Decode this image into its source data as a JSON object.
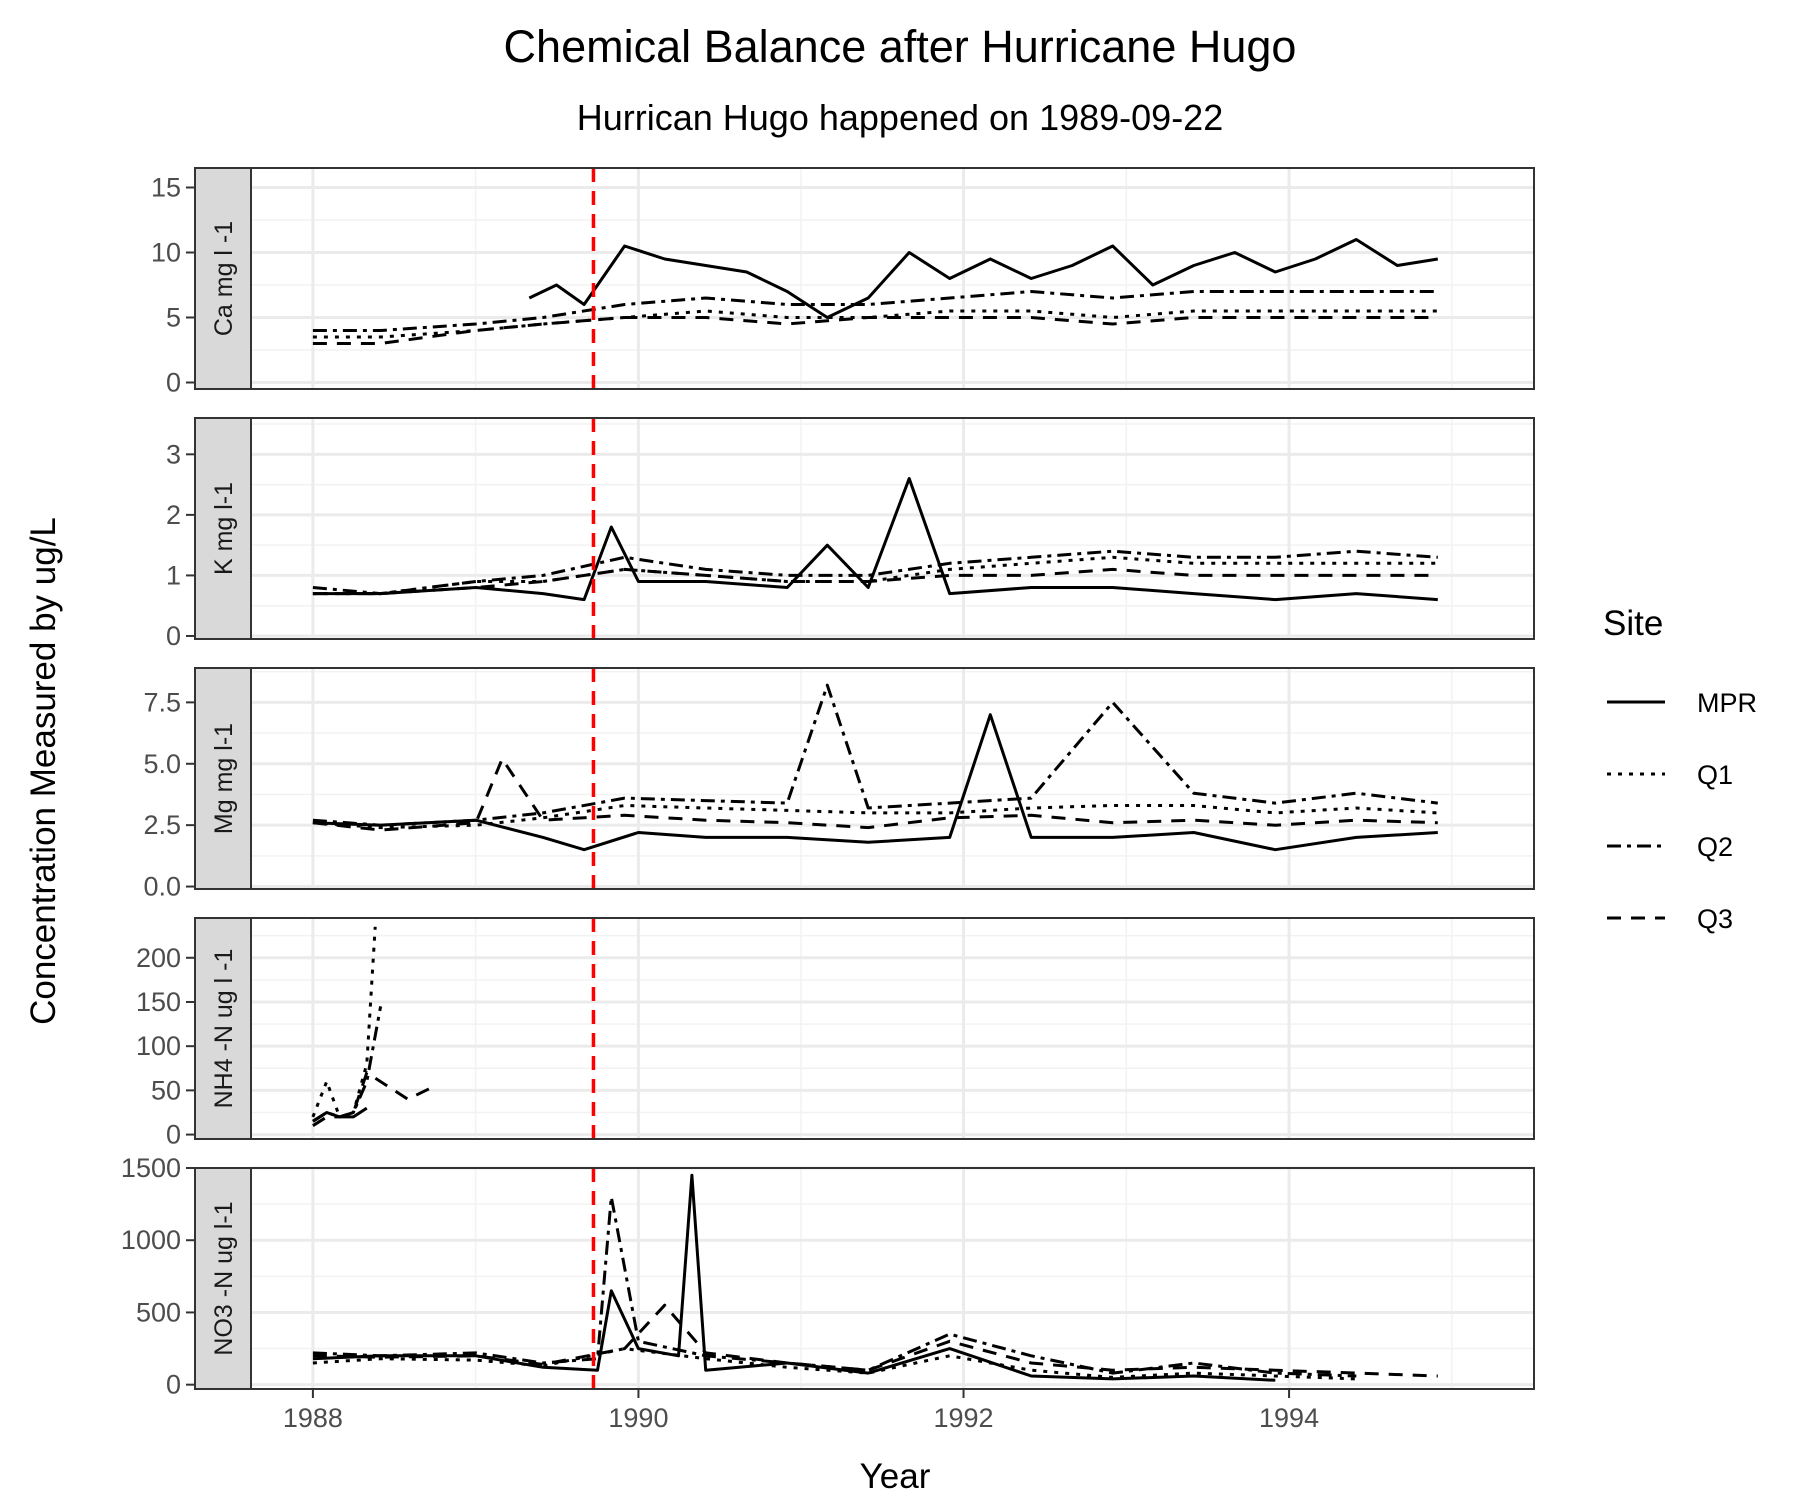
{
  "chart_data": {
    "type": "line",
    "title": "Chemical Balance after Hurricane Hugo",
    "subtitle": "Hurrican Hugo happened on 1989-09-22",
    "xlabel": "Year",
    "ylabel": "Concentration Measured by ug/L",
    "x_range": [
      "1987-08-15",
      "1995-07-05"
    ],
    "x_ticks": [
      {
        "value": "1988-01-01",
        "label": "1988"
      },
      {
        "value": "1990-01-01",
        "label": "1990"
      },
      {
        "value": "1992-01-01",
        "label": "1992"
      },
      {
        "value": "1994-01-01",
        "label": "1994"
      }
    ],
    "event_line": {
      "date": "1989-09-22",
      "color": "#ff0000",
      "style": "dashed"
    },
    "grid": true,
    "legend": {
      "title": "Site",
      "position": "right",
      "items": [
        {
          "name": "MPR",
          "linetype": "solid"
        },
        {
          "name": "Q1",
          "linetype": "dotted"
        },
        {
          "name": "Q2",
          "linetype": "dotdash"
        },
        {
          "name": "Q3",
          "linetype": "dashed"
        }
      ]
    },
    "panels": [
      {
        "strip": "Ca mg l -1",
        "ylim": [
          -0.5,
          16.5
        ],
        "y_ticks": [
          0,
          5,
          10,
          15
        ],
        "y_tick_labels": [
          "0",
          "5",
          "10",
          "15"
        ],
        "series": [
          {
            "name": "MPR",
            "dates": [
              "1989-05-01",
              "1989-07-01",
              "1989-09-01",
              "1989-12-01",
              "1990-03-01",
              "1990-06-01",
              "1990-09-01",
              "1990-12-01",
              "1991-03-01",
              "1991-06-01",
              "1991-09-01",
              "1991-12-01",
              "1992-03-01",
              "1992-06-01",
              "1992-09-01",
              "1992-12-01",
              "1993-03-01",
              "1993-06-01",
              "1993-09-01",
              "1993-12-01",
              "1994-03-01",
              "1994-06-01",
              "1994-09-01",
              "1994-12-01"
            ],
            "values": [
              6.5,
              7.5,
              6.0,
              10.5,
              9.5,
              9.0,
              8.5,
              7.0,
              5.0,
              6.5,
              10.0,
              8.0,
              9.5,
              8.0,
              9.0,
              10.5,
              7.5,
              9.0,
              10.0,
              8.5,
              9.5,
              11.0,
              9.0,
              9.5
            ]
          },
          {
            "name": "Q1",
            "dates": [
              "1988-01-01",
              "1988-06-01",
              "1989-01-01",
              "1989-06-01",
              "1989-12-01",
              "1990-06-01",
              "1990-12-01",
              "1991-06-01",
              "1991-12-01",
              "1992-06-01",
              "1992-12-01",
              "1993-06-01",
              "1993-12-01",
              "1994-06-01",
              "1994-12-01"
            ],
            "values": [
              3.5,
              3.5,
              4.0,
              4.5,
              5.0,
              5.5,
              5.0,
              5.0,
              5.5,
              5.5,
              5.0,
              5.5,
              5.5,
              5.5,
              5.5
            ]
          },
          {
            "name": "Q2",
            "dates": [
              "1988-01-01",
              "1988-06-01",
              "1989-01-01",
              "1989-06-01",
              "1989-12-01",
              "1990-06-01",
              "1990-12-01",
              "1991-06-01",
              "1991-12-01",
              "1992-06-01",
              "1992-12-01",
              "1993-06-01",
              "1993-12-01",
              "1994-06-01",
              "1994-12-01"
            ],
            "values": [
              4.0,
              4.0,
              4.5,
              5.0,
              6.0,
              6.5,
              6.0,
              6.0,
              6.5,
              7.0,
              6.5,
              7.0,
              7.0,
              7.0,
              7.0
            ]
          },
          {
            "name": "Q3",
            "dates": [
              "1988-01-01",
              "1988-06-01",
              "1989-01-01",
              "1989-06-01",
              "1989-12-01",
              "1990-06-01",
              "1990-12-01",
              "1991-06-01",
              "1991-12-01",
              "1992-06-01",
              "1992-12-01",
              "1993-06-01",
              "1993-12-01",
              "1994-06-01",
              "1994-12-01"
            ],
            "values": [
              3.0,
              3.0,
              4.0,
              4.5,
              5.0,
              5.0,
              4.5,
              5.0,
              5.0,
              5.0,
              4.5,
              5.0,
              5.0,
              5.0,
              5.0
            ]
          }
        ]
      },
      {
        "strip": "K mg l-1",
        "ylim": [
          -0.05,
          3.6
        ],
        "y_ticks": [
          0,
          1,
          2,
          3
        ],
        "y_tick_labels": [
          "0",
          "1",
          "2",
          "3"
        ],
        "series": [
          {
            "name": "MPR",
            "dates": [
              "1988-01-01",
              "1988-06-01",
              "1989-01-01",
              "1989-06-01",
              "1989-09-01",
              "1989-11-01",
              "1990-01-01",
              "1990-06-01",
              "1990-12-01",
              "1991-03-01",
              "1991-06-01",
              "1991-09-01",
              "1991-12-01",
              "1992-06-01",
              "1992-12-01",
              "1993-06-01",
              "1993-12-01",
              "1994-06-01",
              "1994-12-01"
            ],
            "values": [
              0.7,
              0.7,
              0.8,
              0.7,
              0.6,
              1.8,
              0.9,
              0.9,
              0.8,
              1.5,
              0.8,
              2.6,
              0.7,
              0.8,
              0.8,
              0.7,
              0.6,
              0.7,
              0.6
            ]
          },
          {
            "name": "Q1",
            "dates": [
              "1988-01-01",
              "1988-06-01",
              "1989-01-01",
              "1989-06-01",
              "1989-12-01",
              "1990-06-01",
              "1990-12-01",
              "1991-06-01",
              "1991-12-01",
              "1992-06-01",
              "1992-12-01",
              "1993-06-01",
              "1993-12-01",
              "1994-06-01",
              "1994-12-01"
            ],
            "values": [
              0.7,
              0.7,
              0.9,
              0.9,
              1.1,
              1.0,
              0.9,
              0.9,
              1.1,
              1.2,
              1.3,
              1.2,
              1.2,
              1.2,
              1.2
            ]
          },
          {
            "name": "Q2",
            "dates": [
              "1988-01-01",
              "1988-06-01",
              "1989-01-01",
              "1989-06-01",
              "1989-12-01",
              "1990-06-01",
              "1990-12-01",
              "1991-06-01",
              "1991-12-01",
              "1992-06-01",
              "1992-12-01",
              "1993-06-01",
              "1993-12-01",
              "1994-06-01",
              "1994-12-01"
            ],
            "values": [
              0.8,
              0.7,
              0.9,
              1.0,
              1.3,
              1.1,
              1.0,
              1.0,
              1.2,
              1.3,
              1.4,
              1.3,
              1.3,
              1.4,
              1.3
            ]
          },
          {
            "name": "Q3",
            "dates": [
              "1988-01-01",
              "1988-06-01",
              "1989-01-01",
              "1989-06-01",
              "1989-12-01",
              "1990-06-01",
              "1990-12-01",
              "1991-06-01",
              "1991-12-01",
              "1992-06-01",
              "1992-12-01",
              "1993-06-01",
              "1993-12-01",
              "1994-06-01",
              "1994-12-01"
            ],
            "values": [
              0.7,
              0.7,
              0.8,
              0.9,
              1.1,
              1.0,
              0.9,
              0.9,
              1.0,
              1.0,
              1.1,
              1.0,
              1.0,
              1.0,
              1.0
            ]
          }
        ]
      },
      {
        "strip": "Mg mg l-1",
        "ylim": [
          -0.1,
          8.9
        ],
        "y_ticks": [
          0,
          2.5,
          5,
          7.5
        ],
        "y_tick_labels": [
          "0.0",
          "2.5",
          "5.0",
          "7.5"
        ],
        "series": [
          {
            "name": "MPR",
            "dates": [
              "1988-01-01",
              "1988-06-01",
              "1989-01-01",
              "1989-06-01",
              "1989-09-01",
              "1990-01-01",
              "1990-06-01",
              "1990-12-01",
              "1991-06-01",
              "1991-12-01",
              "1992-03-01",
              "1992-06-01",
              "1992-12-01",
              "1993-06-01",
              "1993-12-01",
              "1994-06-01",
              "1994-12-01"
            ],
            "values": [
              2.6,
              2.5,
              2.7,
              2.0,
              1.5,
              2.2,
              2.0,
              2.0,
              1.8,
              2.0,
              7.0,
              2.0,
              2.0,
              2.2,
              1.5,
              2.0,
              2.2
            ]
          },
          {
            "name": "Q1",
            "dates": [
              "1988-01-01",
              "1988-06-01",
              "1989-01-01",
              "1989-06-01",
              "1989-12-01",
              "1990-06-01",
              "1990-12-01",
              "1991-06-01",
              "1991-12-01",
              "1992-06-01",
              "1992-12-01",
              "1993-06-01",
              "1993-12-01",
              "1994-06-01",
              "1994-12-01"
            ],
            "values": [
              2.6,
              2.4,
              2.5,
              2.8,
              3.3,
              3.2,
              3.1,
              3.0,
              3.0,
              3.2,
              3.3,
              3.3,
              3.0,
              3.2,
              3.0
            ]
          },
          {
            "name": "Q2",
            "dates": [
              "1988-01-01",
              "1988-06-01",
              "1989-01-01",
              "1989-06-01",
              "1989-12-01",
              "1990-06-01",
              "1990-12-01",
              "1991-03-01",
              "1991-06-01",
              "1991-12-01",
              "1992-06-01",
              "1992-12-01",
              "1993-06-01",
              "1993-12-01",
              "1994-06-01",
              "1994-12-01"
            ],
            "values": [
              2.7,
              2.5,
              2.7,
              3.0,
              3.6,
              3.5,
              3.4,
              8.2,
              3.2,
              3.4,
              3.6,
              7.5,
              3.8,
              3.4,
              3.8,
              3.4
            ]
          },
          {
            "name": "Q3",
            "dates": [
              "1988-01-01",
              "1988-06-01",
              "1989-01-01",
              "1989-03-01",
              "1989-06-01",
              "1989-12-01",
              "1990-06-01",
              "1990-12-01",
              "1991-06-01",
              "1991-12-01",
              "1992-06-01",
              "1992-12-01",
              "1993-06-01",
              "1993-12-01",
              "1994-06-01",
              "1994-12-01"
            ],
            "values": [
              2.6,
              2.3,
              2.6,
              5.2,
              2.7,
              2.9,
              2.7,
              2.6,
              2.4,
              2.8,
              2.9,
              2.6,
              2.7,
              2.5,
              2.7,
              2.6
            ]
          }
        ]
      },
      {
        "strip": "NH4 -N ug l -1",
        "ylim": [
          -5,
          245
        ],
        "y_ticks": [
          0,
          50,
          100,
          150,
          200
        ],
        "y_tick_labels": [
          "0",
          "50",
          "100",
          "150",
          "200"
        ],
        "series": [
          {
            "name": "MPR",
            "dates": [
              "1988-01-01",
              "1988-02-01",
              "1988-03-01",
              "1988-04-01",
              "1988-05-01"
            ],
            "values": [
              15,
              25,
              20,
              20,
              30
            ]
          },
          {
            "name": "Q1",
            "dates": [
              "1988-01-01",
              "1988-02-01",
              "1988-03-01",
              "1988-04-01",
              "1988-05-01",
              "1988-05-20"
            ],
            "values": [
              20,
              60,
              20,
              25,
              80,
              235
            ]
          },
          {
            "name": "Q2",
            "dates": [
              "1988-01-01",
              "1988-02-01",
              "1988-03-01",
              "1988-04-01",
              "1988-05-01",
              "1988-06-01"
            ],
            "values": [
              15,
              25,
              20,
              25,
              60,
              145
            ]
          },
          {
            "name": "Q3",
            "dates": [
              "1988-01-01",
              "1988-02-01",
              "1988-03-01",
              "1988-04-01",
              "1988-05-01",
              "1988-08-01",
              "1988-10-01"
            ],
            "values": [
              10,
              20,
              20,
              25,
              70,
              40,
              55
            ]
          }
        ]
      },
      {
        "strip": "NO3 -N ug l-1",
        "ylim": [
          -30,
          1500
        ],
        "y_ticks": [
          0,
          500,
          1000,
          1500
        ],
        "y_tick_labels": [
          "0",
          "500",
          "1000",
          "1500"
        ],
        "series": [
          {
            "name": "MPR",
            "dates": [
              "1988-01-01",
              "1988-06-01",
              "1989-01-01",
              "1989-06-01",
              "1989-10-01",
              "1989-11-01",
              "1990-01-01",
              "1990-04-01",
              "1990-05-01",
              "1990-06-01",
              "1990-12-01",
              "1991-06-01",
              "1991-12-01",
              "1992-06-01",
              "1992-12-01",
              "1993-06-01",
              "1993-12-01"
            ],
            "values": [
              180,
              200,
              200,
              120,
              100,
              650,
              250,
              200,
              1450,
              100,
              150,
              80,
              250,
              60,
              40,
              60,
              30
            ]
          },
          {
            "name": "Q1",
            "dates": [
              "1988-01-01",
              "1988-06-01",
              "1989-01-01",
              "1989-06-01",
              "1989-12-01",
              "1990-06-01",
              "1990-12-01",
              "1991-06-01",
              "1991-12-01",
              "1992-06-01",
              "1992-12-01",
              "1993-06-01",
              "1993-12-01",
              "1994-06-01"
            ],
            "values": [
              150,
              180,
              170,
              130,
              250,
              180,
              120,
              80,
              200,
              100,
              50,
              80,
              60,
              40
            ]
          },
          {
            "name": "Q2",
            "dates": [
              "1988-01-01",
              "1988-06-01",
              "1989-01-01",
              "1989-06-01",
              "1989-10-01",
              "1989-11-01",
              "1990-01-01",
              "1990-06-01",
              "1990-12-01",
              "1991-06-01",
              "1991-12-01",
              "1992-06-01",
              "1992-12-01",
              "1993-06-01",
              "1993-12-01",
              "1994-06-01"
            ],
            "values": [
              220,
              200,
              220,
              150,
              180,
              1300,
              300,
              200,
              150,
              100,
              350,
              200,
              80,
              150,
              80,
              60
            ]
          },
          {
            "name": "Q3",
            "dates": [
              "1988-01-01",
              "1988-06-01",
              "1989-01-01",
              "1989-06-01",
              "1989-12-01",
              "1990-03-01",
              "1990-06-01",
              "1990-12-01",
              "1991-06-01",
              "1991-12-01",
              "1992-06-01",
              "1992-12-01",
              "1993-06-01",
              "1993-12-01",
              "1994-06-01",
              "1994-12-01"
            ],
            "values": [
              200,
              190,
              200,
              140,
              250,
              550,
              220,
              150,
              100,
              300,
              150,
              100,
              120,
              100,
              80,
              60
            ]
          }
        ]
      }
    ]
  }
}
